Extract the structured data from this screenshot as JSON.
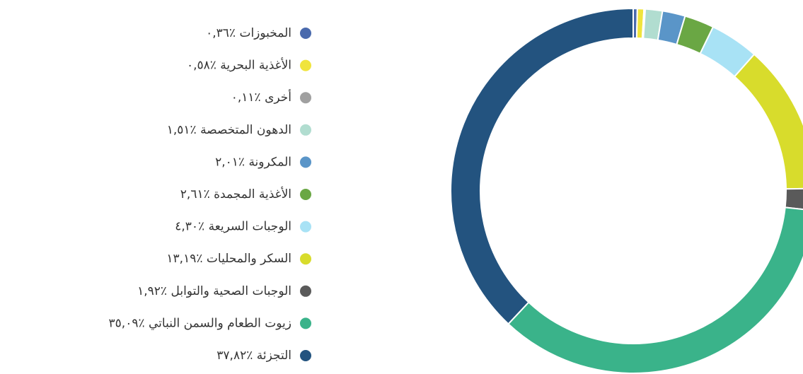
{
  "chart_data": {
    "type": "donut",
    "categories": [
      "المخبوزات",
      "الأغذية البحرية",
      "أخرى",
      "الدهون المتخصصة",
      "المكرونة",
      "الأغذية المجمدة",
      "الوجبات السريعة",
      "السكر والمحليات",
      "الوجبات الصحية والتوابل",
      "زيوت الطعام والسمن النباتي",
      "التجزئة"
    ],
    "values": [
      0.36,
      0.58,
      0.11,
      1.51,
      2.01,
      2.61,
      4.3,
      13.19,
      1.92,
      35.09,
      37.82
    ],
    "value_labels": [
      "٪٠,٣٦",
      "٪٠,٥٨",
      "٪٠,١١",
      "٪١,٥١",
      "٪٢,٠١",
      "٪٢,٦١",
      "٪٤,٣٠",
      "٪١٣,١٩",
      "٪١,٩٢",
      "٪٣٥,٠٩",
      "٪٣٧,٨٢"
    ],
    "colors": [
      "#4a6aad",
      "#f0e43c",
      "#a0a0a0",
      "#b1ddd0",
      "#5a95c8",
      "#6aa744",
      "#a8e2f5",
      "#d8dc2c",
      "#5a5a5a",
      "#3ab38a",
      "#23537f"
    ],
    "legend": "left"
  }
}
